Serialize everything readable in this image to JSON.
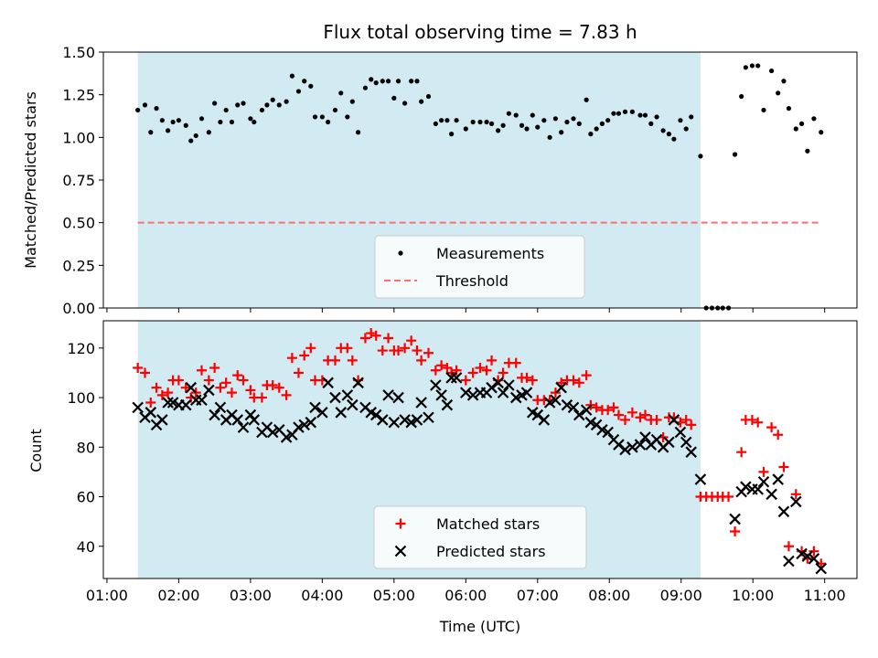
{
  "chart_data": {
    "title": "Flux total observing time = 7.83 h",
    "xlabel": "Time (UTC)",
    "x_ticks": [
      "01:00",
      "02:00",
      "03:00",
      "04:00",
      "05:00",
      "06:00",
      "07:00",
      "08:00",
      "09:00",
      "10:00",
      "11:00"
    ],
    "xlim": [
      0.95,
      11.45
    ],
    "observing_window": {
      "start": 1.43,
      "end": 9.27,
      "color": "#d2eaf1"
    },
    "top": {
      "type": "scatter",
      "ylabel": "Matched/Predicted stars",
      "ylim": [
        0,
        1.5
      ],
      "y_ticks": [
        "0.00",
        "0.25",
        "0.50",
        "0.75",
        "1.00",
        "1.25",
        "1.50"
      ],
      "threshold": 0.5,
      "threshold_x": [
        1.43,
        10.95
      ],
      "threshold_color": "#ff6f6f",
      "legend": [
        "Measurements",
        "Threshold"
      ],
      "legend_loc": "lower center",
      "ratio": [
        [
          1.43,
          1.16
        ],
        [
          1.53,
          1.19
        ],
        [
          1.61,
          1.03
        ],
        [
          1.69,
          1.17
        ],
        [
          1.77,
          1.1
        ],
        [
          1.85,
          1.04
        ],
        [
          1.92,
          1.09
        ],
        [
          2.0,
          1.1
        ],
        [
          2.1,
          1.07
        ],
        [
          2.17,
          0.98
        ],
        [
          2.24,
          1.01
        ],
        [
          2.32,
          1.11
        ],
        [
          2.42,
          1.03
        ],
        [
          2.5,
          1.2
        ],
        [
          2.58,
          1.09
        ],
        [
          2.66,
          1.16
        ],
        [
          2.74,
          1.09
        ],
        [
          2.82,
          1.19
        ],
        [
          2.9,
          1.2
        ],
        [
          3.0,
          1.11
        ],
        [
          3.05,
          1.09
        ],
        [
          3.16,
          1.16
        ],
        [
          3.23,
          1.19
        ],
        [
          3.31,
          1.22
        ],
        [
          3.4,
          1.19
        ],
        [
          3.5,
          1.21
        ],
        [
          3.58,
          1.36
        ],
        [
          3.67,
          1.27
        ],
        [
          3.75,
          1.33
        ],
        [
          3.84,
          1.3
        ],
        [
          3.9,
          1.12
        ],
        [
          4.0,
          1.12
        ],
        [
          4.08,
          1.09
        ],
        [
          4.18,
          1.16
        ],
        [
          4.26,
          1.26
        ],
        [
          4.35,
          1.12
        ],
        [
          4.42,
          1.21
        ],
        [
          4.5,
          1.03
        ],
        [
          4.6,
          1.29
        ],
        [
          4.68,
          1.34
        ],
        [
          4.75,
          1.32
        ],
        [
          4.84,
          1.33
        ],
        [
          4.92,
          1.33
        ],
        [
          5.0,
          1.23
        ],
        [
          5.06,
          1.33
        ],
        [
          5.15,
          1.2
        ],
        [
          5.24,
          1.33
        ],
        [
          5.32,
          1.33
        ],
        [
          5.38,
          1.21
        ],
        [
          5.48,
          1.24
        ],
        [
          5.58,
          1.08
        ],
        [
          5.66,
          1.1
        ],
        [
          5.74,
          1.1
        ],
        [
          5.8,
          1.02
        ],
        [
          5.87,
          1.1
        ],
        [
          6.0,
          1.05
        ],
        [
          6.1,
          1.09
        ],
        [
          6.2,
          1.09
        ],
        [
          6.29,
          1.09
        ],
        [
          6.36,
          1.08
        ],
        [
          6.45,
          1.04
        ],
        [
          6.52,
          1.07
        ],
        [
          6.6,
          1.14
        ],
        [
          6.7,
          1.13
        ],
        [
          6.78,
          1.07
        ],
        [
          6.85,
          1.05
        ],
        [
          6.93,
          1.13
        ],
        [
          7.0,
          1.06
        ],
        [
          7.09,
          1.1
        ],
        [
          7.17,
          1.0
        ],
        [
          7.25,
          1.11
        ],
        [
          7.33,
          1.03
        ],
        [
          7.41,
          1.09
        ],
        [
          7.5,
          1.11
        ],
        [
          7.58,
          1.08
        ],
        [
          7.68,
          1.22
        ],
        [
          7.74,
          1.02
        ],
        [
          7.82,
          1.05
        ],
        [
          7.9,
          1.08
        ],
        [
          7.98,
          1.1
        ],
        [
          8.06,
          1.14
        ],
        [
          8.13,
          1.14
        ],
        [
          8.22,
          1.15
        ],
        [
          8.32,
          1.15
        ],
        [
          8.43,
          1.13
        ],
        [
          8.5,
          1.13
        ],
        [
          8.58,
          1.08
        ],
        [
          8.66,
          1.12
        ],
        [
          8.75,
          1.04
        ],
        [
          8.83,
          1.02
        ],
        [
          8.9,
          0.99
        ],
        [
          8.99,
          1.1
        ],
        [
          9.07,
          1.05
        ],
        [
          9.14,
          1.12
        ],
        [
          9.27,
          0.89
        ],
        [
          9.35,
          0
        ],
        [
          9.43,
          0
        ],
        [
          9.51,
          0
        ],
        [
          9.58,
          0
        ],
        [
          9.66,
          0
        ],
        [
          9.75,
          0.9
        ],
        [
          9.84,
          1.24
        ],
        [
          9.9,
          1.41
        ],
        [
          9.99,
          1.42
        ],
        [
          10.07,
          1.42
        ],
        [
          10.15,
          1.16
        ],
        [
          10.26,
          1.39
        ],
        [
          10.35,
          1.26
        ],
        [
          10.43,
          1.33
        ],
        [
          10.5,
          1.17
        ],
        [
          10.6,
          1.05
        ],
        [
          10.68,
          1.08
        ],
        [
          10.76,
          0.92
        ],
        [
          10.85,
          1.11
        ],
        [
          10.95,
          1.03
        ]
      ]
    },
    "bottom": {
      "type": "scatter",
      "ylabel": "Count",
      "ylim": [
        27,
        131
      ],
      "y_ticks": [
        "40",
        "60",
        "80",
        "100",
        "120"
      ],
      "legend": [
        "Matched stars",
        "Predicted stars"
      ],
      "legend_loc": "lower center",
      "matched": [
        [
          1.43,
          112
        ],
        [
          1.53,
          110
        ],
        [
          1.61,
          98
        ],
        [
          1.69,
          104
        ],
        [
          1.77,
          101
        ],
        [
          1.85,
          102
        ],
        [
          1.92,
          107
        ],
        [
          2.0,
          107
        ],
        [
          2.1,
          104
        ],
        [
          2.17,
          100
        ],
        [
          2.24,
          102
        ],
        [
          2.32,
          111
        ],
        [
          2.42,
          107
        ],
        [
          2.5,
          112
        ],
        [
          2.58,
          104
        ],
        [
          2.66,
          106
        ],
        [
          2.74,
          102
        ],
        [
          2.82,
          109
        ],
        [
          2.9,
          107
        ],
        [
          3.0,
          103
        ],
        [
          3.05,
          100
        ],
        [
          3.16,
          100
        ],
        [
          3.23,
          105
        ],
        [
          3.31,
          105
        ],
        [
          3.4,
          104
        ],
        [
          3.5,
          101
        ],
        [
          3.58,
          116
        ],
        [
          3.67,
          110
        ],
        [
          3.75,
          117
        ],
        [
          3.84,
          120
        ],
        [
          3.9,
          107
        ],
        [
          4.0,
          107
        ],
        [
          4.08,
          115
        ],
        [
          4.18,
          115
        ],
        [
          4.26,
          120
        ],
        [
          4.35,
          120
        ],
        [
          4.42,
          115
        ],
        [
          4.5,
          107
        ],
        [
          4.6,
          124
        ],
        [
          4.68,
          126
        ],
        [
          4.75,
          125
        ],
        [
          4.84,
          119
        ],
        [
          4.92,
          124
        ],
        [
          5.0,
          119
        ],
        [
          5.06,
          119
        ],
        [
          5.15,
          120
        ],
        [
          5.24,
          123
        ],
        [
          5.32,
          119
        ],
        [
          5.38,
          115
        ],
        [
          5.48,
          118
        ],
        [
          5.58,
          111
        ],
        [
          5.66,
          113
        ],
        [
          5.74,
          112
        ],
        [
          5.8,
          110
        ],
        [
          5.87,
          111
        ],
        [
          6.0,
          107
        ],
        [
          6.1,
          110
        ],
        [
          6.2,
          112
        ],
        [
          6.29,
          111
        ],
        [
          6.36,
          115
        ],
        [
          6.45,
          107
        ],
        [
          6.52,
          110
        ],
        [
          6.6,
          114
        ],
        [
          6.7,
          114
        ],
        [
          6.78,
          108
        ],
        [
          6.85,
          108
        ],
        [
          6.93,
          107
        ],
        [
          7.0,
          99
        ],
        [
          7.09,
          99
        ],
        [
          7.17,
          99
        ],
        [
          7.25,
          102
        ],
        [
          7.33,
          106
        ],
        [
          7.41,
          107
        ],
        [
          7.5,
          107
        ],
        [
          7.58,
          106
        ],
        [
          7.68,
          109
        ],
        [
          7.74,
          97
        ],
        [
          7.82,
          96
        ],
        [
          7.9,
          95
        ],
        [
          7.98,
          95
        ],
        [
          8.06,
          96
        ],
        [
          8.13,
          93
        ],
        [
          8.22,
          91
        ],
        [
          8.32,
          94
        ],
        [
          8.43,
          92
        ],
        [
          8.5,
          93
        ],
        [
          8.58,
          91
        ],
        [
          8.66,
          91
        ],
        [
          8.75,
          84
        ],
        [
          8.83,
          92
        ],
        [
          8.9,
          92
        ],
        [
          8.99,
          90
        ],
        [
          9.07,
          91
        ],
        [
          9.14,
          89
        ],
        [
          9.27,
          60
        ],
        [
          9.35,
          60
        ],
        [
          9.43,
          60
        ],
        [
          9.51,
          60
        ],
        [
          9.58,
          60
        ],
        [
          9.66,
          60
        ],
        [
          9.75,
          46
        ],
        [
          9.84,
          78
        ],
        [
          9.9,
          91
        ],
        [
          9.99,
          91
        ],
        [
          10.07,
          90
        ],
        [
          10.15,
          70
        ],
        [
          10.26,
          88
        ],
        [
          10.35,
          85
        ],
        [
          10.43,
          72
        ],
        [
          10.5,
          40
        ],
        [
          10.6,
          61
        ],
        [
          10.68,
          38
        ],
        [
          10.76,
          35
        ],
        [
          10.85,
          38
        ],
        [
          10.95,
          33
        ]
      ],
      "predicted": [
        [
          1.43,
          96
        ],
        [
          1.53,
          92
        ],
        [
          1.61,
          94
        ],
        [
          1.69,
          89
        ],
        [
          1.77,
          91
        ],
        [
          1.85,
          98
        ],
        [
          1.92,
          98
        ],
        [
          2.0,
          97
        ],
        [
          2.1,
          97
        ],
        [
          2.17,
          104
        ],
        [
          2.24,
          99
        ],
        [
          2.32,
          99
        ],
        [
          2.42,
          103
        ],
        [
          2.5,
          93
        ],
        [
          2.58,
          96
        ],
        [
          2.66,
          91
        ],
        [
          2.74,
          93
        ],
        [
          2.82,
          91
        ],
        [
          2.9,
          88
        ],
        [
          3.0,
          93
        ],
        [
          3.05,
          91
        ],
        [
          3.16,
          86
        ],
        [
          3.23,
          88
        ],
        [
          3.31,
          86
        ],
        [
          3.4,
          87
        ],
        [
          3.5,
          84
        ],
        [
          3.58,
          85
        ],
        [
          3.67,
          88
        ],
        [
          3.75,
          89
        ],
        [
          3.84,
          90
        ],
        [
          3.9,
          96
        ],
        [
          4.0,
          94
        ],
        [
          4.08,
          106
        ],
        [
          4.18,
          100
        ],
        [
          4.26,
          94
        ],
        [
          4.35,
          101
        ],
        [
          4.42,
          97
        ],
        [
          4.5,
          106
        ],
        [
          4.6,
          96
        ],
        [
          4.68,
          94
        ],
        [
          4.75,
          93
        ],
        [
          4.84,
          91
        ],
        [
          4.92,
          101
        ],
        [
          5.0,
          90
        ],
        [
          5.06,
          100
        ],
        [
          5.15,
          91
        ],
        [
          5.24,
          90
        ],
        [
          5.32,
          91
        ],
        [
          5.38,
          98
        ],
        [
          5.48,
          92
        ],
        [
          5.58,
          105
        ],
        [
          5.66,
          101
        ],
        [
          5.74,
          97
        ],
        [
          5.8,
          108
        ],
        [
          5.87,
          108
        ],
        [
          6.0,
          102
        ],
        [
          6.1,
          101
        ],
        [
          6.2,
          102
        ],
        [
          6.29,
          102
        ],
        [
          6.36,
          104
        ],
        [
          6.45,
          106
        ],
        [
          6.52,
          102
        ],
        [
          6.6,
          105
        ],
        [
          6.7,
          100
        ],
        [
          6.78,
          101
        ],
        [
          6.85,
          102
        ],
        [
          6.93,
          94
        ],
        [
          7.0,
          93
        ],
        [
          7.09,
          91
        ],
        [
          7.17,
          98
        ],
        [
          7.25,
          99
        ],
        [
          7.33,
          104
        ],
        [
          7.41,
          97
        ],
        [
          7.5,
          96
        ],
        [
          7.58,
          93
        ],
        [
          7.68,
          95
        ],
        [
          7.74,
          90
        ],
        [
          7.82,
          89
        ],
        [
          7.9,
          87
        ],
        [
          7.98,
          86
        ],
        [
          8.06,
          83
        ],
        [
          8.13,
          81
        ],
        [
          8.22,
          79
        ],
        [
          8.32,
          80
        ],
        [
          8.43,
          81
        ],
        [
          8.5,
          84
        ],
        [
          8.58,
          81
        ],
        [
          8.66,
          83
        ],
        [
          8.75,
          80
        ],
        [
          8.83,
          82
        ],
        [
          8.9,
          91
        ],
        [
          8.99,
          86
        ],
        [
          9.07,
          82
        ],
        [
          9.14,
          78
        ],
        [
          9.27,
          67
        ],
        [
          9.75,
          51
        ],
        [
          9.84,
          62
        ],
        [
          9.9,
          64
        ],
        [
          9.99,
          63
        ],
        [
          10.07,
          63
        ],
        [
          10.15,
          66
        ],
        [
          10.26,
          61
        ],
        [
          10.35,
          67
        ],
        [
          10.43,
          54
        ],
        [
          10.5,
          34
        ],
        [
          10.6,
          58
        ],
        [
          10.68,
          37
        ],
        [
          10.76,
          36
        ],
        [
          10.85,
          35
        ],
        [
          10.95,
          31
        ]
      ]
    }
  }
}
